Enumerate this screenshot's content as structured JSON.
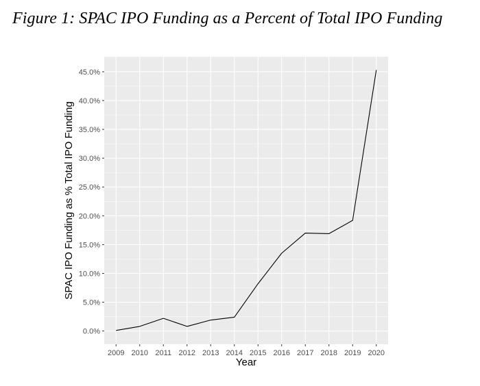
{
  "figure": {
    "caption": "Figure 1: SPAC IPO Funding as a Percent of Total IPO Funding"
  },
  "chart_data": {
    "type": "line",
    "title": "",
    "xlabel": "Year",
    "ylabel": "SPAC IPO Funding as % Total IPO Funding",
    "x": [
      2009,
      2010,
      2011,
      2012,
      2013,
      2014,
      2015,
      2016,
      2017,
      2018,
      2019,
      2020
    ],
    "series": [
      {
        "values": [
          0.1,
          0.8,
          2.2,
          0.8,
          1.9,
          2.4,
          8.2,
          13.5,
          17.0,
          16.9,
          19.2,
          45.3
        ]
      }
    ],
    "xticks": [
      "2009",
      "2010",
      "2011",
      "2012",
      "2013",
      "2014",
      "2015",
      "2016",
      "2017",
      "2018",
      "2019",
      "2020"
    ],
    "yticks": [
      0,
      5,
      10,
      15,
      20,
      25,
      30,
      35,
      40,
      45
    ],
    "ytick_labels": [
      "0.0%",
      "5.0%",
      "10.0%",
      "15.0%",
      "20.0%",
      "25.0%",
      "30.0%",
      "35.0%",
      "40.0%",
      "45.0%"
    ],
    "ylim": [
      -2.3,
      47.6
    ],
    "xlim": [
      2008.5,
      2020.5
    ],
    "grid": true,
    "colors": {
      "panel": "#ebebeb",
      "grid_major": "#ffffff",
      "line": "#000000",
      "tick_text": "#4d4d4d",
      "tick_mark": "#333333"
    }
  }
}
